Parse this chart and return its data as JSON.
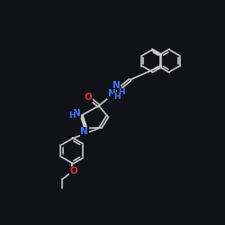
{
  "bg_color": "#111118",
  "bond_color": "#cccccc",
  "heteroatom_color": "#4477ff",
  "oxygen_color": "#dd3333",
  "lw": 1.2,
  "fs": 7.5,
  "xlim": [
    0,
    10
  ],
  "ylim": [
    0,
    10
  ]
}
